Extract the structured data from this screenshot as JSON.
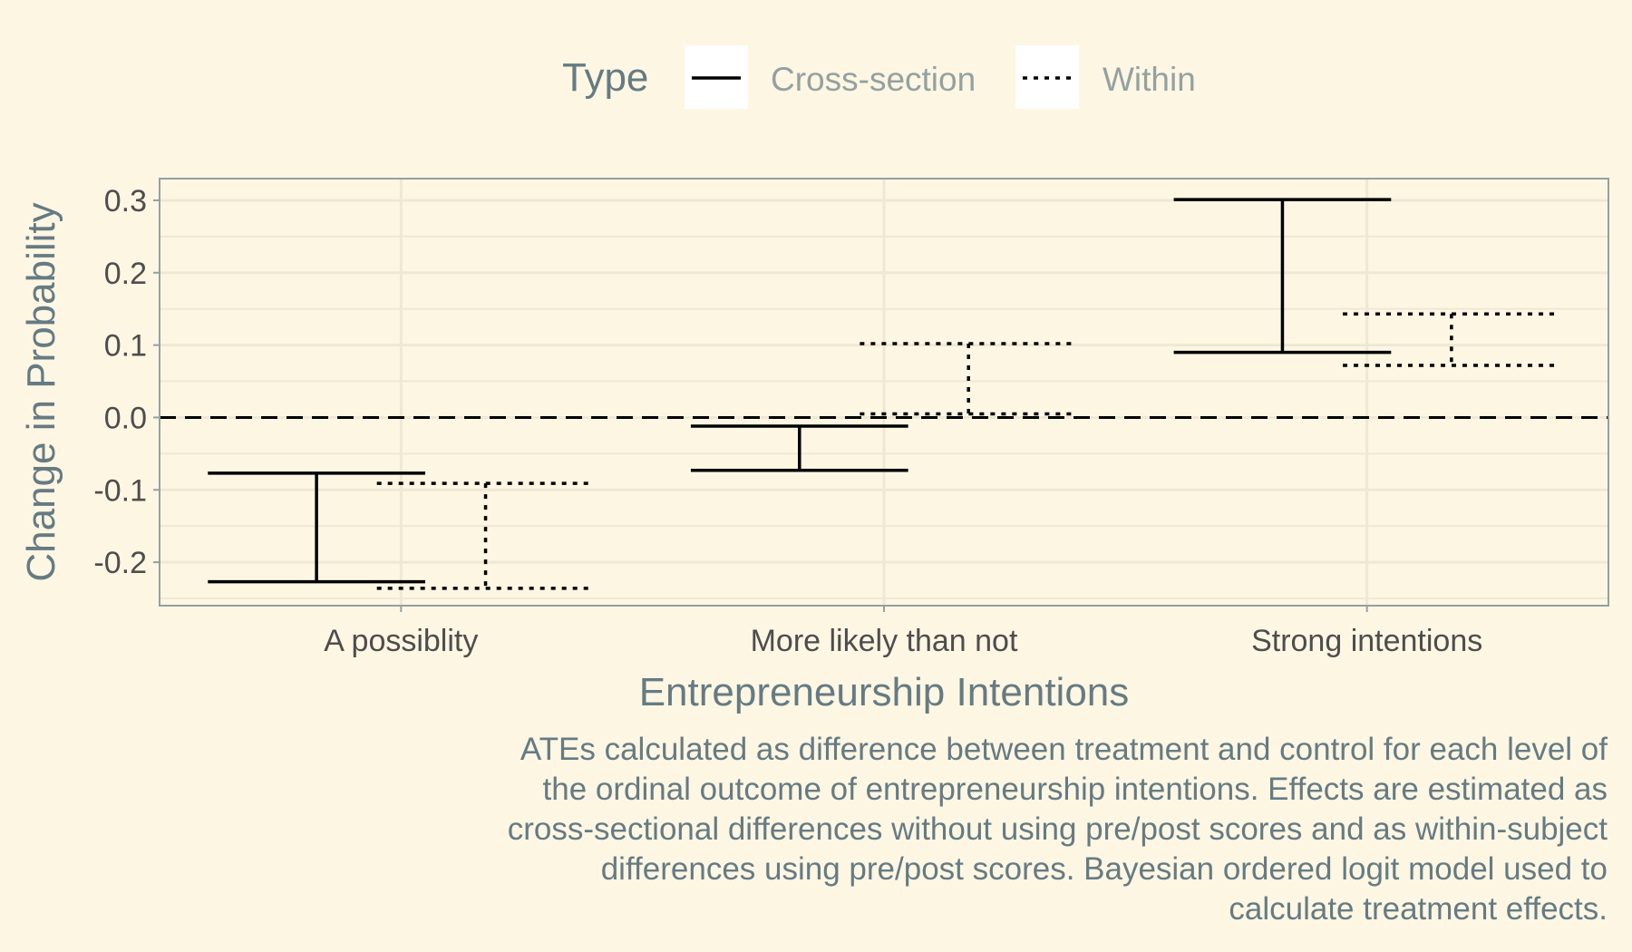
{
  "chart_data": {
    "type": "errorbar",
    "xlabel": "Entrepreneurship Intentions",
    "ylabel": "Change in Probability",
    "categories": [
      "A possiblity",
      "More likely than not",
      "Strong intentions"
    ],
    "ylim": [
      -0.26,
      0.33
    ],
    "yticks": [
      "0.3",
      "0.2",
      "0.1",
      "0.0",
      "-0.1",
      "-0.2"
    ],
    "reference_line": {
      "y": 0.0,
      "style": "dashed"
    },
    "legend": {
      "title": "Type",
      "placement": "top",
      "entries": [
        "Cross-section",
        "Within"
      ]
    },
    "series": [
      {
        "name": "Cross-section",
        "linetype": "solid",
        "intervals": [
          {
            "low": -0.227,
            "high": -0.077
          },
          {
            "low": -0.073,
            "high": -0.012
          },
          {
            "low": 0.09,
            "high": 0.301
          }
        ]
      },
      {
        "name": "Within",
        "linetype": "dotted",
        "intervals": [
          {
            "low": -0.236,
            "high": -0.091
          },
          {
            "low": 0.005,
            "high": 0.102
          },
          {
            "low": 0.072,
            "high": 0.143
          }
        ]
      }
    ],
    "grid": true
  },
  "caption": [
    "ATEs calculated as difference between treatment and control for each level of",
    "the ordinal outcome of entrepreneurship intentions. Effects are estimated as",
    "cross-sectional differences without using pre/post scores and as within-subject",
    "differences using pre/post scores. Bayesian ordered logit model used to",
    "calculate treatment effects."
  ],
  "colors": {
    "background": "#fdf6e3",
    "grid": "#eee8d5",
    "axis": "#93a1a1",
    "text_dark": "#657b83",
    "ticks": "#4d4d4d",
    "legend_text": "#93a1a1"
  }
}
